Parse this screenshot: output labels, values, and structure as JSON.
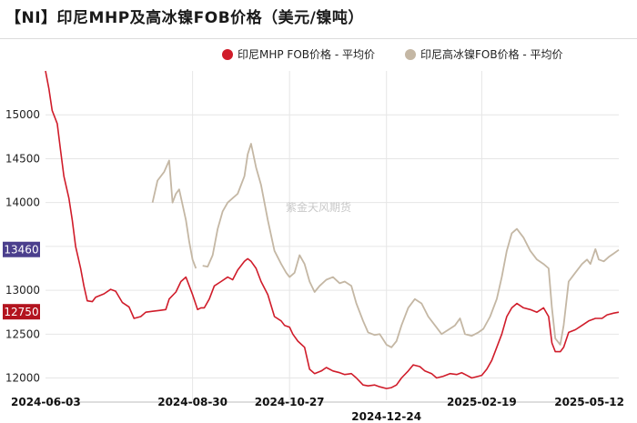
{
  "title": "【NI】印尼MHP及高冰镍FOB价格（美元/镍吨）",
  "watermark": "紫金天风期货",
  "chart_data": {
    "type": "line",
    "title": "【NI】印尼MHP及高冰镍FOB价格（美元/镍吨）",
    "xlabel": "",
    "ylabel": "",
    "ylim": [
      11850,
      15500
    ],
    "yticks": [
      12000,
      12500,
      13000,
      13500,
      14000,
      14500,
      15000
    ],
    "xlim": [
      "2024-06-03",
      "2025-05-12"
    ],
    "xticks": [
      "2024-06-03",
      "2024-08-30",
      "2024-10-27",
      "2024-12-24",
      "2025-02-19",
      "2025-05-12"
    ],
    "vgrid_dates": [
      "2024-08-30",
      "2024-10-27",
      "2024-12-24",
      "2025-02-19"
    ],
    "grid": true,
    "legend_position": "top-right",
    "colors": {
      "mhp": "#d01c2a",
      "ni_matte": "#c4b7a4",
      "badge_mhp": "#b3141f",
      "badge_matte": "#4b3f8d"
    },
    "end_labels": {
      "mhp": "12750",
      "ni_matte": "13460"
    },
    "series": [
      {
        "name": "印尼MHP FOB价格 - 平均价",
        "key": "mhp",
        "points": [
          [
            "2024-06-03",
            15500
          ],
          [
            "2024-06-05",
            15300
          ],
          [
            "2024-06-07",
            15050
          ],
          [
            "2024-06-10",
            14900
          ],
          [
            "2024-06-12",
            14600
          ],
          [
            "2024-06-14",
            14300
          ],
          [
            "2024-06-17",
            14050
          ],
          [
            "2024-06-19",
            13800
          ],
          [
            "2024-06-21",
            13500
          ],
          [
            "2024-06-24",
            13250
          ],
          [
            "2024-06-26",
            13050
          ],
          [
            "2024-06-28",
            12880
          ],
          [
            "2024-07-01",
            12870
          ],
          [
            "2024-07-03",
            12920
          ],
          [
            "2024-07-08",
            12960
          ],
          [
            "2024-07-12",
            13010
          ],
          [
            "2024-07-15",
            12990
          ],
          [
            "2024-07-19",
            12860
          ],
          [
            "2024-07-23",
            12810
          ],
          [
            "2024-07-26",
            12680
          ],
          [
            "2024-07-30",
            12700
          ],
          [
            "2024-08-02",
            12750
          ],
          [
            "2024-08-06",
            12760
          ],
          [
            "2024-08-10",
            12770
          ],
          [
            "2024-08-14",
            12780
          ],
          [
            "2024-08-16",
            12900
          ],
          [
            "2024-08-20",
            12980
          ],
          [
            "2024-08-23",
            13100
          ],
          [
            "2024-08-26",
            13150
          ],
          [
            "2024-08-28",
            13050
          ],
          [
            "2024-08-30",
            12950
          ],
          [
            "2024-09-02",
            12780
          ],
          [
            "2024-09-04",
            12800
          ],
          [
            "2024-09-06",
            12800
          ],
          [
            "2024-09-09",
            12900
          ],
          [
            "2024-09-12",
            13050
          ],
          [
            "2024-09-16",
            13100
          ],
          [
            "2024-09-20",
            13150
          ],
          [
            "2024-09-23",
            13120
          ],
          [
            "2024-09-26",
            13230
          ],
          [
            "2024-09-30",
            13330
          ],
          [
            "2024-10-02",
            13360
          ],
          [
            "2024-10-04",
            13330
          ],
          [
            "2024-10-07",
            13250
          ],
          [
            "2024-10-10",
            13100
          ],
          [
            "2024-10-14",
            12950
          ],
          [
            "2024-10-18",
            12700
          ],
          [
            "2024-10-22",
            12650
          ],
          [
            "2024-10-24",
            12600
          ],
          [
            "2024-10-27",
            12580
          ],
          [
            "2024-10-29",
            12500
          ],
          [
            "2024-11-01",
            12420
          ],
          [
            "2024-11-05",
            12350
          ],
          [
            "2024-11-08",
            12100
          ],
          [
            "2024-11-11",
            12050
          ],
          [
            "2024-11-15",
            12080
          ],
          [
            "2024-11-18",
            12120
          ],
          [
            "2024-11-22",
            12080
          ],
          [
            "2024-11-26",
            12060
          ],
          [
            "2024-11-29",
            12040
          ],
          [
            "2024-12-03",
            12050
          ],
          [
            "2024-12-06",
            12000
          ],
          [
            "2024-12-10",
            11920
          ],
          [
            "2024-12-13",
            11910
          ],
          [
            "2024-12-17",
            11920
          ],
          [
            "2024-12-20",
            11900
          ],
          [
            "2024-12-24",
            11880
          ],
          [
            "2024-12-27",
            11890
          ],
          [
            "2024-12-30",
            11920
          ],
          [
            "2025-01-02",
            12000
          ],
          [
            "2025-01-06",
            12080
          ],
          [
            "2025-01-09",
            12150
          ],
          [
            "2025-01-13",
            12130
          ],
          [
            "2025-01-16",
            12080
          ],
          [
            "2025-01-20",
            12050
          ],
          [
            "2025-01-23",
            12000
          ],
          [
            "2025-01-27",
            12020
          ],
          [
            "2025-01-31",
            12050
          ],
          [
            "2025-02-04",
            12040
          ],
          [
            "2025-02-07",
            12060
          ],
          [
            "2025-02-10",
            12030
          ],
          [
            "2025-02-13",
            12000
          ],
          [
            "2025-02-17",
            12020
          ],
          [
            "2025-02-19",
            12030
          ],
          [
            "2025-02-22",
            12100
          ],
          [
            "2025-02-25",
            12200
          ],
          [
            "2025-02-28",
            12350
          ],
          [
            "2025-03-03",
            12500
          ],
          [
            "2025-03-06",
            12700
          ],
          [
            "2025-03-09",
            12800
          ],
          [
            "2025-03-12",
            12850
          ],
          [
            "2025-03-16",
            12800
          ],
          [
            "2025-03-20",
            12780
          ],
          [
            "2025-03-24",
            12750
          ],
          [
            "2025-03-28",
            12800
          ],
          [
            "2025-03-31",
            12700
          ],
          [
            "2025-04-02",
            12400
          ],
          [
            "2025-04-04",
            12300
          ],
          [
            "2025-04-07",
            12300
          ],
          [
            "2025-04-09",
            12350
          ],
          [
            "2025-04-12",
            12520
          ],
          [
            "2025-04-16",
            12550
          ],
          [
            "2025-04-20",
            12600
          ],
          [
            "2025-04-24",
            12650
          ],
          [
            "2025-04-28",
            12680
          ],
          [
            "2025-05-02",
            12680
          ],
          [
            "2025-05-05",
            12720
          ],
          [
            "2025-05-09",
            12740
          ],
          [
            "2025-05-12",
            12750
          ]
        ]
      },
      {
        "name": "印尼高冰镍FOB价格 - 平均价",
        "key": "ni_matte",
        "points": [
          [
            "2024-08-06",
            14000
          ],
          [
            "2024-08-09",
            14250
          ],
          [
            "2024-08-13",
            14350
          ],
          [
            "2024-08-16",
            14480
          ],
          [
            "2024-08-18",
            14000
          ],
          [
            "2024-08-20",
            14100
          ],
          [
            "2024-08-22",
            14150
          ],
          [
            "2024-08-26",
            13800
          ],
          [
            "2024-08-28",
            13550
          ],
          [
            "2024-08-30",
            13350
          ],
          [
            "2024-09-01",
            13250
          ],
          null,
          [
            "2024-09-05",
            13280
          ],
          [
            "2024-09-08",
            13270
          ],
          [
            "2024-09-11",
            13400
          ],
          [
            "2024-09-14",
            13700
          ],
          [
            "2024-09-17",
            13900
          ],
          [
            "2024-09-20",
            14000
          ],
          [
            "2024-09-23",
            14050
          ],
          [
            "2024-09-26",
            14100
          ],
          [
            "2024-09-30",
            14300
          ],
          [
            "2024-10-02",
            14550
          ],
          [
            "2024-10-04",
            14670
          ],
          [
            "2024-10-07",
            14400
          ],
          [
            "2024-10-10",
            14200
          ],
          [
            "2024-10-14",
            13800
          ],
          [
            "2024-10-18",
            13450
          ],
          [
            "2024-10-22",
            13300
          ],
          [
            "2024-10-25",
            13200
          ],
          [
            "2024-10-27",
            13150
          ],
          [
            "2024-10-30",
            13200
          ],
          [
            "2024-11-02",
            13400
          ],
          [
            "2024-11-05",
            13300
          ],
          [
            "2024-11-08",
            13100
          ],
          [
            "2024-11-11",
            12980
          ],
          [
            "2024-11-14",
            13050
          ],
          [
            "2024-11-18",
            13120
          ],
          [
            "2024-11-22",
            13150
          ],
          [
            "2024-11-26",
            13080
          ],
          [
            "2024-11-29",
            13100
          ],
          [
            "2024-12-03",
            13050
          ],
          [
            "2024-12-06",
            12850
          ],
          [
            "2024-12-10",
            12650
          ],
          [
            "2024-12-13",
            12520
          ],
          [
            "2024-12-17",
            12490
          ],
          [
            "2024-12-20",
            12500
          ],
          [
            "2024-12-24",
            12380
          ],
          [
            "2024-12-27",
            12350
          ],
          [
            "2024-12-30",
            12420
          ],
          [
            "2025-01-02",
            12600
          ],
          [
            "2025-01-06",
            12800
          ],
          [
            "2025-01-10",
            12900
          ],
          [
            "2025-01-14",
            12850
          ],
          [
            "2025-01-18",
            12700
          ],
          [
            "2025-01-22",
            12600
          ],
          [
            "2025-01-26",
            12500
          ],
          [
            "2025-01-30",
            12550
          ],
          [
            "2025-02-03",
            12600
          ],
          [
            "2025-02-06",
            12680
          ],
          [
            "2025-02-09",
            12500
          ],
          [
            "2025-02-13",
            12480
          ],
          [
            "2025-02-17",
            12520
          ],
          [
            "2025-02-20",
            12560
          ],
          [
            "2025-02-24",
            12700
          ],
          [
            "2025-02-28",
            12900
          ],
          [
            "2025-03-03",
            13150
          ],
          [
            "2025-03-06",
            13450
          ],
          [
            "2025-03-09",
            13650
          ],
          [
            "2025-03-12",
            13700
          ],
          [
            "2025-03-16",
            13600
          ],
          [
            "2025-03-20",
            13450
          ],
          [
            "2025-03-24",
            13350
          ],
          [
            "2025-03-28",
            13300
          ],
          [
            "2025-03-31",
            13250
          ],
          [
            "2025-04-02",
            12800
          ],
          [
            "2025-04-04",
            12450
          ],
          [
            "2025-04-07",
            12380
          ],
          [
            "2025-04-09",
            12600
          ],
          [
            "2025-04-12",
            13100
          ],
          [
            "2025-04-16",
            13200
          ],
          [
            "2025-04-20",
            13300
          ],
          [
            "2025-04-23",
            13350
          ],
          [
            "2025-04-25",
            13300
          ],
          [
            "2025-04-28",
            13470
          ],
          [
            "2025-04-30",
            13350
          ],
          [
            "2025-05-03",
            13330
          ],
          [
            "2025-05-06",
            13380
          ],
          [
            "2025-05-09",
            13420
          ],
          [
            "2025-05-12",
            13460
          ]
        ]
      }
    ]
  }
}
